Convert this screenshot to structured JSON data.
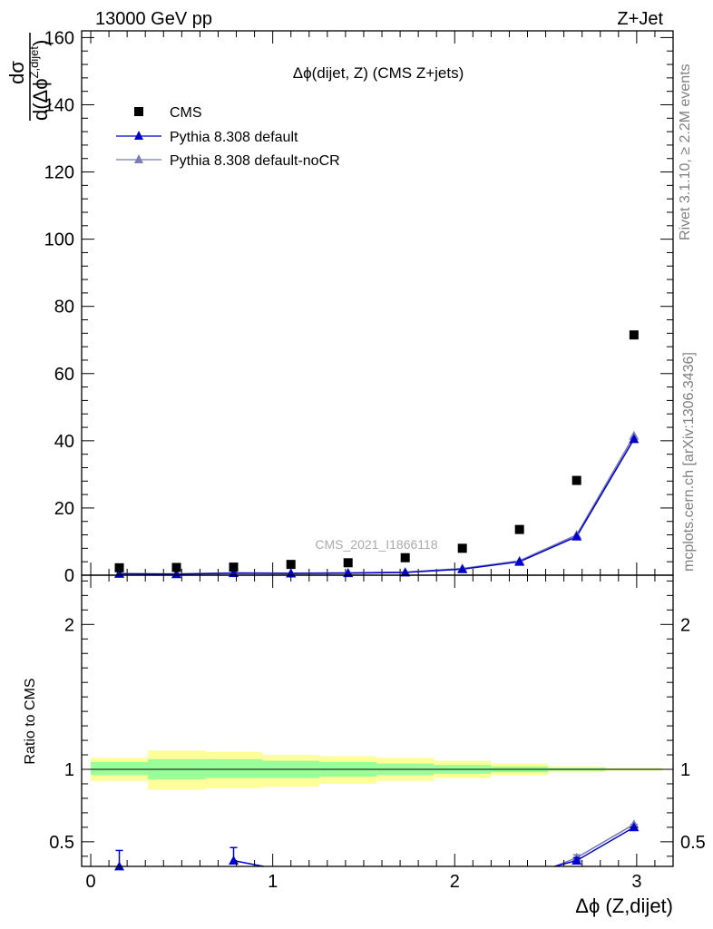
{
  "header": {
    "left": "13000 GeV pp",
    "right": "Z+Jet"
  },
  "side_labels": {
    "rivet": "Rivet 3.1.10, ≥ 2.2M events",
    "mcplots": "mcplots.cern.ch [arXiv:1306.3436]"
  },
  "chart_data": {
    "type": "scatter",
    "title": "Δϕ(dijet, Z) (CMS Z+jets)",
    "watermark": "CMS_2021_I1866118",
    "xlabel": "Δϕ (Z,dijet)",
    "x_ticks": [
      "0",
      "1",
      "2",
      "3"
    ],
    "xlim": [
      -0.05,
      3.2
    ],
    "grid": false,
    "legend_placement": "top-left",
    "main": {
      "ylabel_parts": {
        "num": "dσ",
        "den_prefix": "d(Δϕ",
        "den_sup": "Z,dijet",
        "den_suffix": ")"
      },
      "ylim": [
        0,
        162
      ],
      "y_ticks": [
        "0",
        "20",
        "40",
        "60",
        "80",
        "100",
        "120",
        "140",
        "160"
      ],
      "series": [
        {
          "name": "CMS",
          "marker": "square",
          "color": "#000000",
          "x": [
            0.157,
            0.471,
            0.785,
            1.1,
            1.414,
            1.728,
            2.042,
            2.356,
            2.67,
            2.985
          ],
          "y": [
            2.2,
            2.3,
            2.4,
            3.2,
            3.7,
            5.2,
            8.0,
            13.6,
            28.2,
            71.5
          ]
        },
        {
          "name": "Pythia 8.308 default",
          "marker": "triangle",
          "color": "#0000cc",
          "x": [
            0.157,
            0.471,
            0.785,
            1.1,
            1.414,
            1.728,
            2.042,
            2.356,
            2.67,
            2.985
          ],
          "y": [
            0.4,
            0.3,
            0.6,
            0.5,
            0.6,
            0.8,
            1.8,
            4.0,
            11.5,
            40.5
          ]
        },
        {
          "name": "Pythia 8.308 default-noCR",
          "marker": "triangle",
          "color": "#7b7bb5",
          "x": [
            0.157,
            0.471,
            0.785,
            1.1,
            1.414,
            1.728,
            2.042,
            2.356,
            2.67,
            2.985
          ],
          "y": [
            0.5,
            0.4,
            0.7,
            0.6,
            0.7,
            0.9,
            2.0,
            4.3,
            12.0,
            41.5
          ]
        }
      ]
    },
    "ratio": {
      "ylabel": "Ratio to CMS",
      "ylim": [
        0.33,
        2.34
      ],
      "y_ticks": [
        "0.5",
        "1",
        "2"
      ],
      "band_edges": [
        0.0,
        0.314,
        0.628,
        0.942,
        1.257,
        1.571,
        1.885,
        2.199,
        2.513,
        2.827,
        3.142
      ],
      "green_band": [
        [
          0.96,
          1.05
        ],
        [
          0.93,
          1.07
        ],
        [
          0.94,
          1.07
        ],
        [
          0.94,
          1.06
        ],
        [
          0.95,
          1.05
        ],
        [
          0.96,
          1.04
        ],
        [
          0.97,
          1.03
        ],
        [
          0.98,
          1.02
        ],
        [
          0.99,
          1.01
        ],
        [
          0.995,
          1.005
        ]
      ],
      "yellow_band": [
        [
          0.92,
          1.08
        ],
        [
          0.86,
          1.13
        ],
        [
          0.87,
          1.12
        ],
        [
          0.88,
          1.1
        ],
        [
          0.9,
          1.09
        ],
        [
          0.92,
          1.08
        ],
        [
          0.94,
          1.06
        ],
        [
          0.96,
          1.04
        ],
        [
          0.98,
          1.02
        ],
        [
          0.99,
          1.01
        ]
      ],
      "series": [
        {
          "name": "Pythia 8.308 default",
          "color": "#0000cc",
          "points": [
            {
              "x": 0.157,
              "y": 0.18,
              "err_up": 0.44
            },
            {
              "x": 0.785,
              "y": 0.37,
              "err_up": 0.46
            },
            {
              "x": 2.67,
              "y": 0.37,
              "err_up": 0.39
            },
            {
              "x": 2.985,
              "y": 0.6,
              "err_up": 0.6
            }
          ],
          "line_segments": [
            [
              [
                0.785,
                0.37
              ],
              [
                0.95,
                0.3
              ]
            ],
            [
              [
                2.55,
                0.3
              ],
              [
                2.67,
                0.37
              ],
              [
                2.985,
                0.6
              ]
            ]
          ]
        },
        {
          "name": "Pythia 8.308 default-noCR",
          "color": "#7b7bb5",
          "points": [
            {
              "x": 2.67,
              "y": 0.39,
              "err_up": 0.41
            },
            {
              "x": 2.985,
              "y": 0.62,
              "err_up": 0.62
            }
          ],
          "line_segments": [
            [
              [
                2.55,
                0.3
              ],
              [
                2.67,
                0.39
              ],
              [
                2.985,
                0.62
              ]
            ]
          ]
        }
      ]
    }
  }
}
